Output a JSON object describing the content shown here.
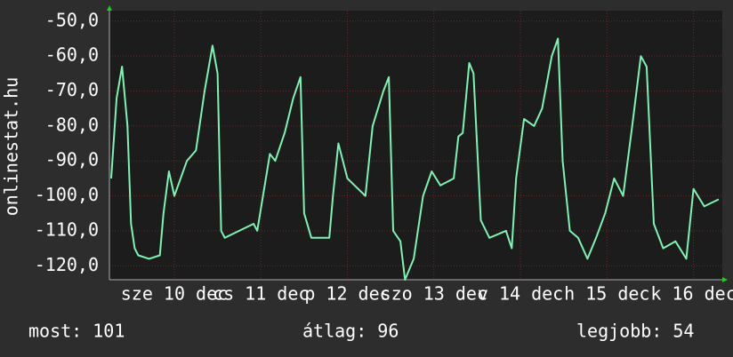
{
  "chart_data": {
    "type": "line",
    "side_label": "onlinestat.hu",
    "footer": [
      "most: 101",
      "átlag: 96",
      "legjobb: 54"
    ],
    "color": "#7ff2b4",
    "grid": true,
    "xlim": [
      0,
      170
    ],
    "ylim": [
      -124,
      -47
    ],
    "xticks": [
      {
        "value": 18,
        "label": "sze 10 dec"
      },
      {
        "value": 42,
        "label": "cs 11 dec"
      },
      {
        "value": 66,
        "label": "p 12 dec"
      },
      {
        "value": 90,
        "label": "szo 13 dec"
      },
      {
        "value": 114,
        "label": "v 14 dec"
      },
      {
        "value": 138,
        "label": "h 15 dec"
      },
      {
        "value": 162,
        "label": "k 16 dec"
      }
    ],
    "yticks": [
      {
        "value": -50,
        "label": "-50,0"
      },
      {
        "value": -60,
        "label": "-60,0"
      },
      {
        "value": -70,
        "label": "-70,0"
      },
      {
        "value": -80,
        "label": "-80,0"
      },
      {
        "value": -90,
        "label": "-90,0"
      },
      {
        "value": -100,
        "label": "-100,0"
      },
      {
        "value": -110,
        "label": "-110,0"
      },
      {
        "value": -120,
        "label": "-120,0"
      }
    ],
    "x": [
      0.5,
      2,
      3.5,
      5,
      6,
      7,
      8,
      11,
      14,
      15,
      16.5,
      18,
      21.5,
      24,
      26.4,
      28.6,
      30,
      31,
      32,
      36,
      40,
      41,
      44.5,
      46,
      48.6,
      51,
      53,
      54,
      56,
      61,
      62,
      63.5,
      66,
      68,
      71,
      73,
      76,
      77.5,
      78.7,
      80.7,
      82,
      84.4,
      87,
      89.4,
      91.8,
      95.5,
      96.8,
      98,
      99.8,
      101,
      103,
      105.4,
      110,
      111.6,
      112.8,
      115,
      117.8,
      120,
      122.7,
      124.4,
      125.7,
      127.7,
      130,
      132.6,
      135,
      137.5,
      140,
      142.5,
      145,
      147.4,
      149,
      151,
      153.6,
      157,
      160,
      162,
      165,
      167,
      169
    ],
    "values": [
      -95,
      -72,
      -63,
      -80,
      -108,
      -115,
      -117,
      -118,
      -117,
      -105,
      -93,
      -100,
      -90,
      -87,
      -70,
      -57,
      -65,
      -110,
      -112,
      -110,
      -108,
      -110,
      -88,
      -90,
      -82,
      -72,
      -66,
      -105,
      -112,
      -112,
      -100,
      -85,
      -95,
      -97,
      -100,
      -80,
      -70,
      -66,
      -110,
      -113,
      -124,
      -118,
      -100,
      -93,
      -97,
      -95,
      -83,
      -82,
      -62,
      -65,
      -107,
      -112,
      -110,
      -115,
      -95,
      -78,
      -80,
      -75,
      -60,
      -55,
      -90,
      -110,
      -112,
      -118,
      -112,
      -105,
      -95,
      -100,
      -80,
      -60,
      -63,
      -108,
      -115,
      -113,
      -118,
      -98,
      -103,
      -102,
      -101
    ]
  }
}
